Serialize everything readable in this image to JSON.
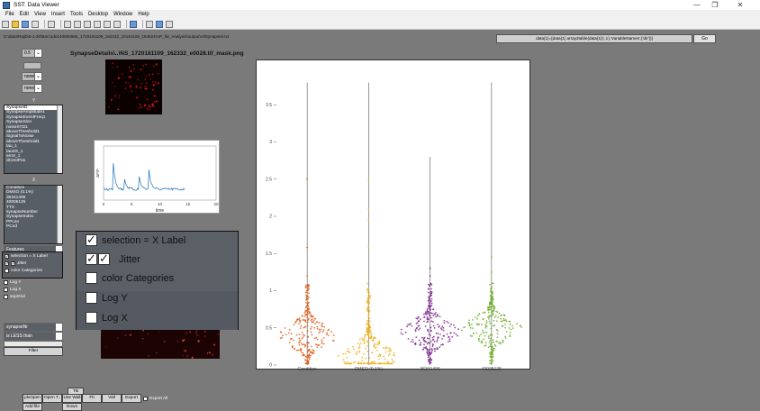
{
  "window": {
    "title": "SST: Data Viewer",
    "controls": [
      "—",
      "❐",
      "✕"
    ]
  },
  "menu": [
    "File",
    "Edit",
    "View",
    "Insert",
    "Tools",
    "Desktop",
    "Window",
    "Help"
  ],
  "path_text": "D:\\data\\Rajib\\6-1-20\\Barcode140650565_1720181109_162332_20181109_164624\\AP_fat_Analysis\\output\\AllSynapses.txt",
  "command": {
    "value": "data{1}=[data{1} array2table(data{1}(:,1),'VariableNames',{'dir'})]",
    "go_label": "Go"
  },
  "left_controls": {
    "threshold_value": "0.5",
    "drop1": "none",
    "drop2": "none",
    "y_label": "Y",
    "y_list": [
      "SynapseID",
      "SynapseAmplitude1",
      "SynapseEventFreq1",
      "SynapseSize",
      "noiseSTD1",
      "aboveThreshold1",
      "SignalToNoise",
      "aboveThreshold1",
      "tau_1",
      "tauSS_1",
      "error_1",
      "dCentPos"
    ],
    "y_selected_index": 0,
    "x_label": "X",
    "x_list": [
      "Condition",
      "DMSO (0.1%)",
      "",
      "36341406",
      "40005125",
      "TTX",
      "synapseNumber",
      "SynapseIndex",
      "PPcon",
      "PCod"
    ],
    "x_selected_index": 2,
    "features_label": "Features",
    "small_options": [
      "selection = X Label",
      "Jitter",
      "color Categories",
      "Log Y",
      "Log X",
      "sepGrid"
    ],
    "filter_field": "synapseNr",
    "filter_op": "is LESS than",
    "filter_value": "",
    "filter_button": "Filter"
  },
  "popup": {
    "options": [
      {
        "label": "selection = X Label",
        "checked": true
      },
      {
        "label": "Jitter",
        "checked": true
      },
      {
        "label": "color Categories",
        "checked": false
      },
      {
        "label": "Log Y",
        "checked": false
      },
      {
        "label": "Log X",
        "checked": false
      }
    ]
  },
  "image_title": "SynapseDetails\\..\\NS_1720181109_162332_e0028.tif_mask.png",
  "trace": {
    "ylabel": "ΔF/F",
    "xlabel": "time",
    "xticks": [
      "0",
      "5",
      "10",
      "15",
      "20"
    ],
    "line_color": "#1f6fb5"
  },
  "bottom_buttons": {
    "top_row": [
      "TB"
    ],
    "row1": [
      "plxOpen",
      "Open T..",
      "Use Wall",
      "Fit",
      "Vall",
      "Export",
      "Export All"
    ],
    "row2": [
      "Add file",
      "Down"
    ]
  },
  "chart_data": {
    "type": "violin-swarm",
    "categories": [
      "Condition",
      "DMSO (0.1%)",
      "36341406",
      "40005125"
    ],
    "colors": [
      "#e0621c",
      "#f0b21c",
      "#7e2a8e",
      "#72ae2e"
    ],
    "ylim": [
      0,
      4
    ],
    "yticks": [
      "0",
      "0.5",
      "1",
      "1.5",
      "2",
      "2.5",
      "3",
      "3.5"
    ],
    "series": [
      {
        "max": 3.8,
        "median": 0.4,
        "outliers": [
          2.5,
          1.58,
          1.2
        ]
      },
      {
        "max": 3.8,
        "median": 0.12,
        "outliers": [
          2.5,
          2.1,
          1.95,
          1.6
        ]
      },
      {
        "max": 2.8,
        "median": 0.45,
        "outliers": [
          1.3,
          1.2
        ]
      },
      {
        "max": 3.8,
        "median": 0.5,
        "outliers": [
          1.45,
          1.25
        ]
      }
    ]
  }
}
